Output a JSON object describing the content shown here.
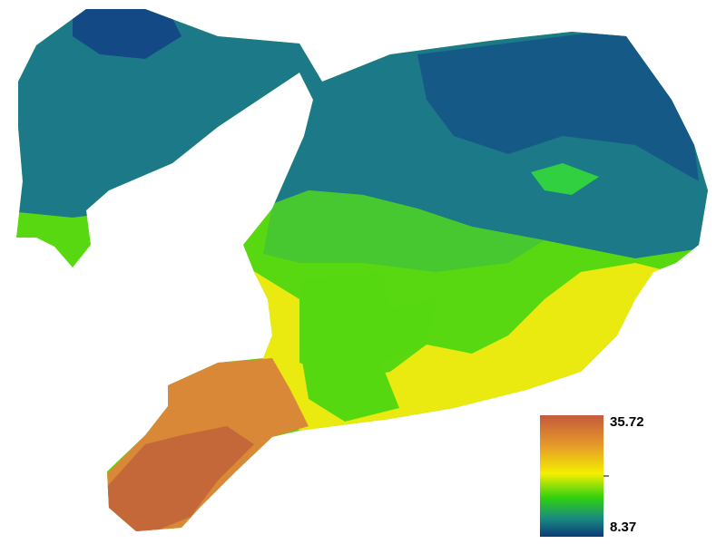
{
  "legend": {
    "max": 35.72,
    "min": 8.37
  }
}
